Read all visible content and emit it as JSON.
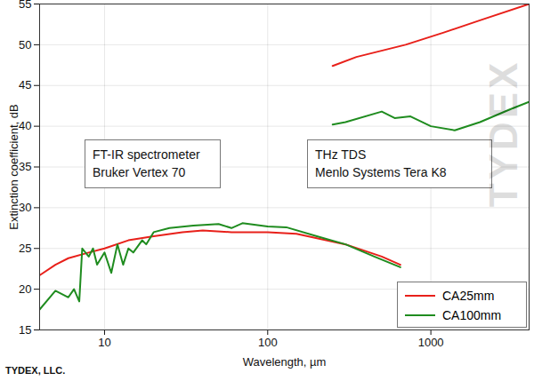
{
  "chart_data": {
    "type": "line",
    "x_label": "Wavelength, µm",
    "y_label": "Extinction coefficient, dB",
    "annotations": [
      [
        "FT-IR spectrometer",
        "Bruker Vertex 70"
      ],
      [
        "THz TDS",
        "Menlo Systems Tera K8"
      ]
    ],
    "caption": "TYDEX, LLC.",
    "watermark": "TYDEX",
    "log": "x",
    "grid": true,
    "legend": "bottom-right",
    "xlim": [
      4,
      4000
    ],
    "xticks": [
      10,
      100,
      1000
    ],
    "ylim": [
      15,
      55
    ],
    "yticks": [
      15,
      20,
      25,
      30,
      35,
      40,
      45,
      50,
      55
    ],
    "series": [
      {
        "name": "CA25mm",
        "color": "#e8201a",
        "x": [
          4,
          5,
          6,
          8,
          10,
          14,
          20,
          30,
          40,
          60,
          100,
          150,
          300,
          500,
          650,
          null,
          250,
          350,
          700,
          1200,
          2000,
          4000
        ],
        "values": [
          21.7,
          23,
          23.8,
          24.5,
          25,
          26,
          26.5,
          27,
          27.2,
          27,
          27,
          26.8,
          25.5,
          24,
          23,
          null,
          47.4,
          48.5,
          50,
          51.5,
          53,
          55
        ]
      },
      {
        "name": "CA100mm",
        "color": "#1f8c1f",
        "x": [
          4,
          5,
          6,
          6.5,
          7,
          7.3,
          8,
          8.5,
          9,
          10,
          11,
          12,
          13,
          14,
          15,
          17,
          18,
          20,
          25,
          35,
          50,
          60,
          70,
          100,
          130,
          200,
          300,
          450,
          650,
          null,
          250,
          300,
          500,
          600,
          750,
          1000,
          1400,
          2000,
          3000,
          4000
        ],
        "values": [
          17.5,
          19.8,
          19,
          20,
          18.5,
          25,
          24,
          25,
          23,
          24.5,
          22,
          25.5,
          23,
          25,
          24.5,
          26,
          25.5,
          27,
          27.5,
          27.8,
          28,
          27.5,
          28.1,
          27.7,
          27.6,
          26.5,
          25.5,
          24,
          22.7,
          null,
          40.2,
          40.5,
          41.8,
          41,
          41.2,
          40,
          39.5,
          40.5,
          42,
          43
        ]
      }
    ]
  }
}
